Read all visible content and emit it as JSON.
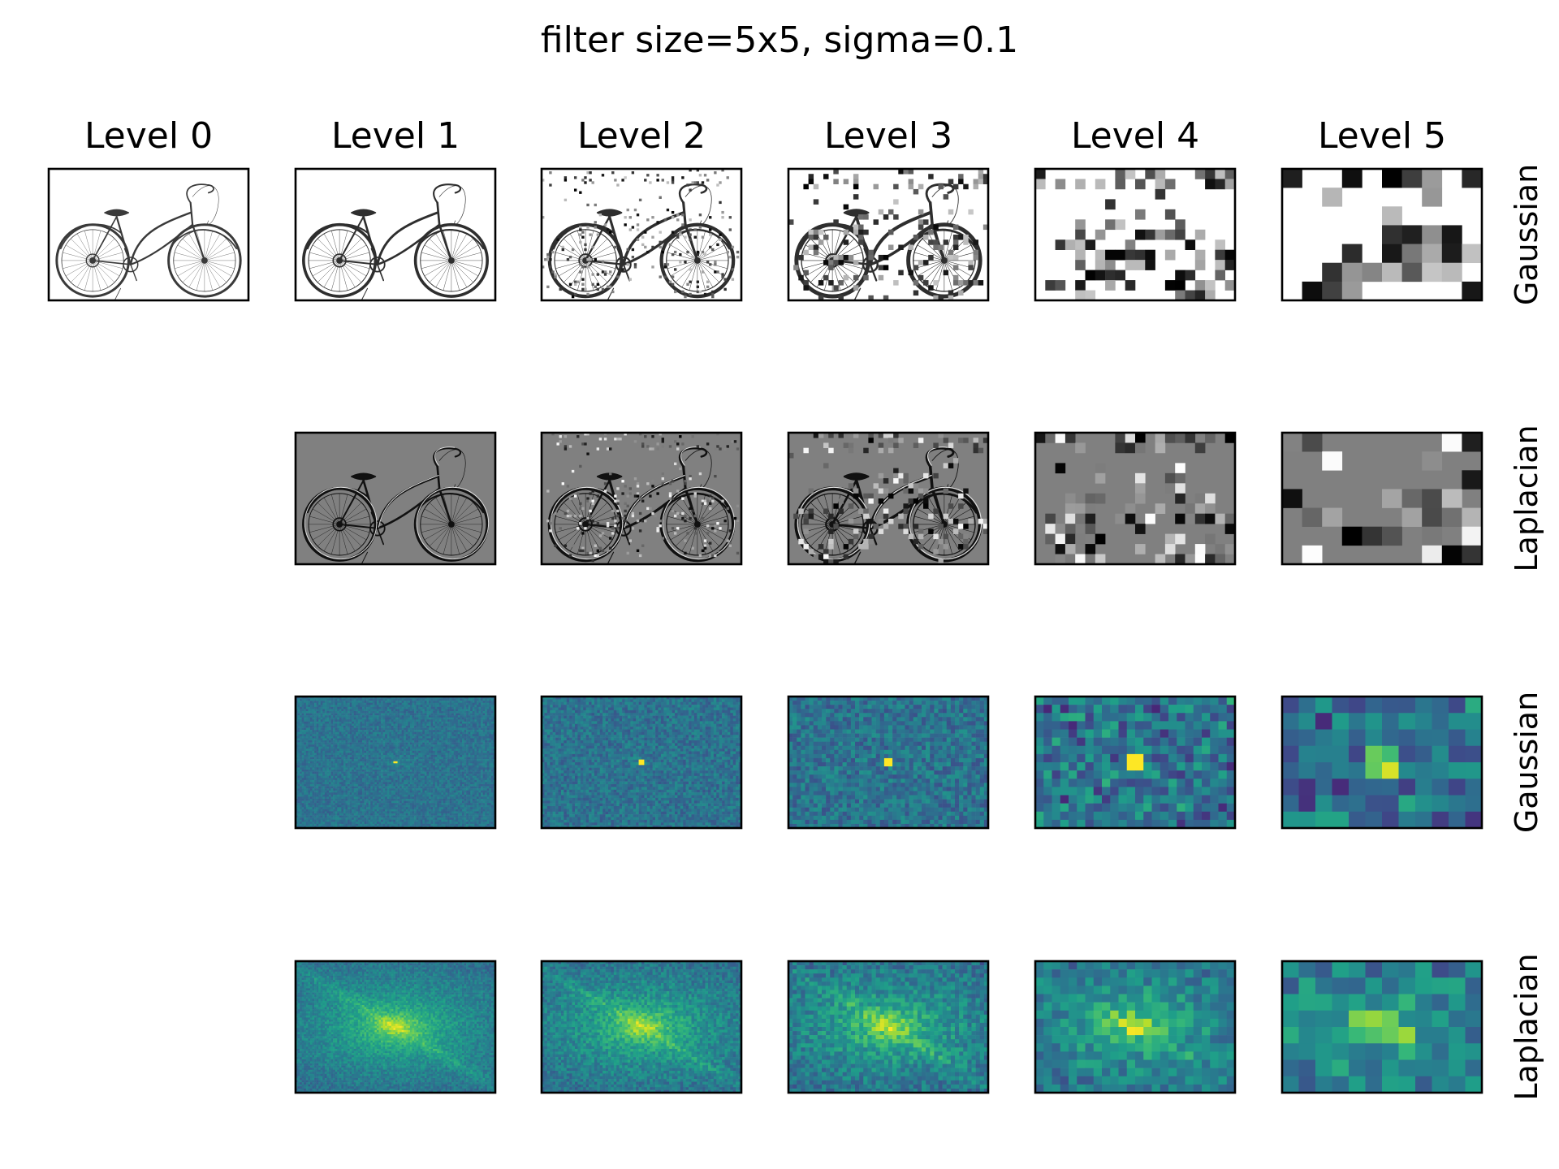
{
  "title": "filter size=5x5, sigma=0.1",
  "columns": [
    "Level 0",
    "Level 1",
    "Level 2",
    "Level 3",
    "Level 4",
    "Level 5"
  ],
  "rows": [
    {
      "label": "Gaussian",
      "kind": "image",
      "cmap": "gray",
      "style": "gaussian",
      "levels": [
        0,
        1,
        2,
        3,
        4,
        5
      ]
    },
    {
      "label": "Laplacian",
      "kind": "image",
      "cmap": "gray",
      "style": "laplacian",
      "levels": [
        1,
        2,
        3,
        4,
        5
      ]
    },
    {
      "label": "Gaussian",
      "kind": "spectrum",
      "cmap": "viridis",
      "style": "gaussian",
      "levels": [
        1,
        2,
        3,
        4,
        5
      ]
    },
    {
      "label": "Laplacian",
      "kind": "spectrum",
      "cmap": "viridis",
      "style": "laplacian",
      "levels": [
        1,
        2,
        3,
        4,
        5
      ]
    }
  ],
  "image_subject": "bicycle",
  "colors": {
    "background": "#ffffff",
    "frame": "#000000",
    "laplacian_gray": "#808080"
  }
}
